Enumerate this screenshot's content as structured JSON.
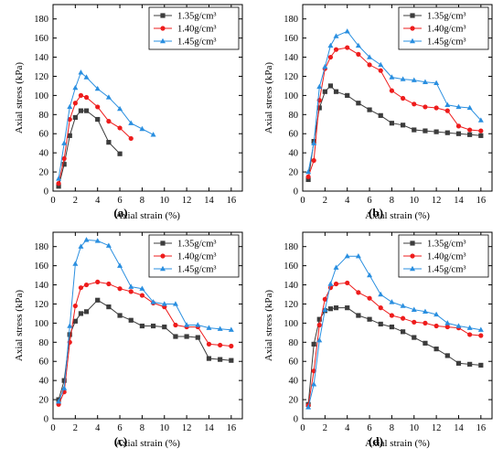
{
  "figure": {
    "panel_labels": [
      "(a)",
      "(b)",
      "(c)",
      "(d)"
    ]
  },
  "colors": {
    "s135": "#3c3c3c",
    "s140": "#ee1c1c",
    "s145": "#2a8fe0"
  },
  "chart_data": [
    {
      "type": "line",
      "panel_label": "(a)",
      "xlabel": "Axial strain (%)",
      "ylabel": "Axial stress (kPa)",
      "xlim": [
        0,
        17
      ],
      "ylim": [
        0,
        195
      ],
      "xticks": [
        0,
        2,
        4,
        6,
        8,
        10,
        12,
        14,
        16
      ],
      "yticks": [
        0,
        20,
        40,
        60,
        80,
        100,
        120,
        140,
        160,
        180
      ],
      "legend": "top-right",
      "series": [
        {
          "name": "1.35g/cm³",
          "marker": "square",
          "x": [
            0.5,
            1.0,
            1.5,
            2.0,
            2.5,
            3.0,
            4.0,
            5.0,
            6.0
          ],
          "y": [
            5,
            28,
            58,
            77,
            84,
            84,
            75,
            51,
            39
          ]
        },
        {
          "name": "1.40g/cm³",
          "marker": "circle",
          "x": [
            0.5,
            1.0,
            1.5,
            2.0,
            2.5,
            3.0,
            4.0,
            5.0,
            6.0,
            7.0
          ],
          "y": [
            8,
            34,
            75,
            92,
            100,
            98,
            88,
            73,
            66,
            55
          ]
        },
        {
          "name": "1.45g/cm³",
          "marker": "triangle",
          "x": [
            0.5,
            1.0,
            1.5,
            2.0,
            2.5,
            3.0,
            4.0,
            5.0,
            6.0,
            7.0,
            8.0,
            9.0
          ],
          "y": [
            13,
            50,
            88,
            108,
            124,
            119,
            107,
            98,
            86,
            71,
            65,
            59
          ]
        }
      ]
    },
    {
      "type": "line",
      "panel_label": "(b)",
      "xlabel": "Axial strain (%)",
      "ylabel": "Axial stress (kPa)",
      "xlim": [
        0,
        17
      ],
      "ylim": [
        0,
        195
      ],
      "xticks": [
        0,
        2,
        4,
        6,
        8,
        10,
        12,
        14,
        16
      ],
      "yticks": [
        0,
        20,
        40,
        60,
        80,
        100,
        120,
        140,
        160,
        180
      ],
      "legend": "top-right",
      "series": [
        {
          "name": "1.35g/cm³",
          "marker": "square",
          "x": [
            0.5,
            1.0,
            1.5,
            2.0,
            2.5,
            3.0,
            4.0,
            5.0,
            6.0,
            7.0,
            8.0,
            9.0,
            10.0,
            11.0,
            12.0,
            13.0,
            14.0,
            15.0,
            16.0
          ],
          "y": [
            12,
            52,
            87,
            104,
            110,
            104,
            100,
            92,
            85,
            79,
            71,
            69,
            64,
            63,
            62,
            61,
            60,
            59,
            58
          ]
        },
        {
          "name": "1.40g/cm³",
          "marker": "circle",
          "x": [
            0.5,
            1.0,
            1.5,
            2.0,
            2.5,
            3.0,
            4.0,
            5.0,
            6.0,
            7.0,
            8.0,
            9.0,
            10.0,
            11.0,
            12.0,
            13.0,
            14.0,
            15.0,
            16.0
          ],
          "y": [
            15,
            32,
            95,
            128,
            140,
            148,
            150,
            143,
            132,
            126,
            105,
            97,
            91,
            88,
            87,
            84,
            68,
            64,
            63
          ]
        },
        {
          "name": "1.45g/cm³",
          "marker": "triangle",
          "x": [
            0.5,
            1.0,
            1.5,
            2.0,
            2.5,
            3.0,
            4.0,
            5.0,
            6.0,
            7.0,
            8.0,
            9.0,
            10.0,
            11.0,
            12.0,
            13.0,
            14.0,
            15.0,
            16.0
          ],
          "y": [
            20,
            50,
            109,
            130,
            152,
            162,
            167,
            152,
            140,
            132,
            119,
            117,
            116,
            114,
            113,
            90,
            88,
            87,
            74
          ]
        }
      ]
    },
    {
      "type": "line",
      "panel_label": "(c)",
      "xlabel": "Axial strain (%)",
      "ylabel": "Axial stress (kPa)",
      "xlim": [
        0,
        17
      ],
      "ylim": [
        0,
        195
      ],
      "xticks": [
        0,
        2,
        4,
        6,
        8,
        10,
        12,
        14,
        16
      ],
      "yticks": [
        0,
        20,
        40,
        60,
        80,
        100,
        120,
        140,
        160,
        180
      ],
      "legend": "top-right",
      "series": [
        {
          "name": "1.35g/cm³",
          "marker": "square",
          "x": [
            0.5,
            1.0,
            1.5,
            2.0,
            2.5,
            3.0,
            4.0,
            5.0,
            6.0,
            7.0,
            8.0,
            9.0,
            10.0,
            11.0,
            12.0,
            13.0,
            14.0,
            15.0,
            16.0
          ],
          "y": [
            20,
            40,
            88,
            102,
            110,
            112,
            124,
            117,
            108,
            103,
            97,
            97,
            96,
            86,
            86,
            85,
            63,
            62,
            61
          ]
        },
        {
          "name": "1.40g/cm³",
          "marker": "circle",
          "x": [
            0.5,
            1.0,
            1.5,
            2.0,
            2.5,
            3.0,
            4.0,
            5.0,
            6.0,
            7.0,
            8.0,
            9.0,
            10.0,
            11.0,
            12.0,
            13.0,
            14.0,
            15.0,
            16.0
          ],
          "y": [
            15,
            28,
            80,
            118,
            137,
            140,
            143,
            141,
            136,
            133,
            129,
            121,
            117,
            98,
            96,
            96,
            78,
            77,
            76
          ]
        },
        {
          "name": "1.45g/cm³",
          "marker": "triangle",
          "x": [
            0.5,
            1.0,
            1.5,
            2.0,
            2.5,
            3.0,
            4.0,
            5.0,
            6.0,
            7.0,
            8.0,
            9.0,
            10.0,
            11.0,
            12.0,
            13.0,
            14.0,
            15.0,
            16.0
          ],
          "y": [
            18,
            32,
            97,
            162,
            180,
            187,
            186,
            181,
            160,
            138,
            136,
            122,
            120,
            120,
            98,
            98,
            95,
            94,
            93
          ]
        }
      ]
    },
    {
      "type": "line",
      "panel_label": "(d)",
      "xlabel": "Axial strain (%)",
      "ylabel": "Axial stress (kPa)",
      "xlim": [
        0,
        17
      ],
      "ylim": [
        0,
        195
      ],
      "xticks": [
        0,
        2,
        4,
        6,
        8,
        10,
        12,
        14,
        16
      ],
      "yticks": [
        0,
        20,
        40,
        60,
        80,
        100,
        120,
        140,
        160,
        180
      ],
      "legend": "top-right",
      "series": [
        {
          "name": "1.35g/cm³",
          "marker": "square",
          "x": [
            0.5,
            1.0,
            1.5,
            2.0,
            2.5,
            3.0,
            4.0,
            5.0,
            6.0,
            7.0,
            8.0,
            9.0,
            10.0,
            11.0,
            12.0,
            13.0,
            14.0,
            15.0,
            16.0
          ],
          "y": [
            15,
            78,
            104,
            113,
            115,
            116,
            116,
            108,
            104,
            99,
            96,
            91,
            85,
            79,
            73,
            66,
            58,
            57,
            56
          ]
        },
        {
          "name": "1.40g/cm³",
          "marker": "circle",
          "x": [
            0.5,
            1.0,
            1.5,
            2.0,
            2.5,
            3.0,
            4.0,
            5.0,
            6.0,
            7.0,
            8.0,
            9.0,
            10.0,
            11.0,
            12.0,
            13.0,
            14.0,
            15.0,
            16.0
          ],
          "y": [
            14,
            50,
            98,
            125,
            137,
            141,
            142,
            132,
            126,
            116,
            108,
            105,
            101,
            100,
            97,
            96,
            95,
            88,
            87
          ]
        },
        {
          "name": "1.45g/cm³",
          "marker": "triangle",
          "x": [
            0.5,
            1.0,
            1.5,
            2.0,
            2.5,
            3.0,
            4.0,
            5.0,
            6.0,
            7.0,
            8.0,
            9.0,
            10.0,
            11.0,
            12.0,
            13.0,
            14.0,
            15.0,
            16.0
          ],
          "y": [
            12,
            36,
            82,
            114,
            141,
            158,
            170,
            170,
            150,
            130,
            122,
            118,
            114,
            112,
            109,
            100,
            97,
            95,
            93
          ]
        }
      ]
    }
  ]
}
